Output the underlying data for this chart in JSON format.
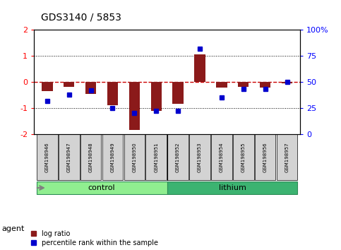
{
  "title": "GDS3140 / 5853",
  "samples": [
    "GSM198946",
    "GSM198947",
    "GSM198948",
    "GSM198949",
    "GSM198950",
    "GSM198951",
    "GSM198952",
    "GSM198953",
    "GSM198954",
    "GSM198955",
    "GSM198956",
    "GSM198957"
  ],
  "log_ratio": [
    -0.35,
    -0.18,
    -0.45,
    -0.9,
    -1.85,
    -1.1,
    -0.85,
    1.05,
    -0.22,
    -0.18,
    -0.22,
    -0.04
  ],
  "percentile_rank": [
    32,
    38,
    42,
    25,
    20,
    22,
    22,
    82,
    35,
    43,
    43,
    50
  ],
  "bar_color": "#8B1A1A",
  "dot_color": "#0000CD",
  "bar_width": 0.5,
  "ylim": [
    -2,
    2
  ],
  "y2lim": [
    0,
    100
  ],
  "yticks": [
    -2,
    -1,
    0,
    1,
    2
  ],
  "y2ticks": [
    0,
    25,
    50,
    75,
    100
  ],
  "y2ticklabels": [
    "0",
    "25",
    "50",
    "75",
    "100%"
  ],
  "hline_color": "#CC0000",
  "dotted_color": "black",
  "control_color_light": "#90EE90",
  "lithium_color_medium": "#3CB371",
  "border_color": "#2E8B57",
  "agent_label": "agent",
  "control_label": "control",
  "lithium_label": "lithium",
  "legend_logratio": "log ratio",
  "legend_percentile": "percentile rank within the sample",
  "n_control": 6,
  "n_lithium": 6
}
